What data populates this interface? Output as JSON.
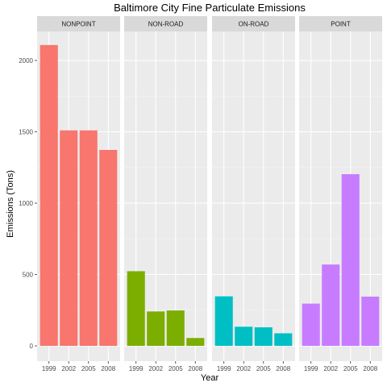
{
  "chart_data": {
    "type": "bar",
    "title": "Baltimore City Fine Particulate Emissions",
    "xlabel": "Year",
    "ylabel": "Emissions (Tons)",
    "ylim": [
      0,
      2200
    ],
    "yticks": [
      0,
      500,
      1000,
      1500,
      2000
    ],
    "categories": [
      "1999",
      "2002",
      "2005",
      "2008"
    ],
    "grid": true,
    "facets": [
      {
        "name": "NONPOINT",
        "color": "#F8766D",
        "values": [
          2108,
          1510,
          1510,
          1373
        ]
      },
      {
        "name": "NON-ROAD",
        "color": "#7CAE00",
        "values": [
          523,
          241,
          248,
          55
        ]
      },
      {
        "name": "ON-ROAD",
        "color": "#00BFC4",
        "values": [
          347,
          134,
          130,
          88
        ]
      },
      {
        "name": "POINT",
        "color": "#C77CFF",
        "values": [
          296,
          570,
          1203,
          345
        ]
      }
    ]
  }
}
